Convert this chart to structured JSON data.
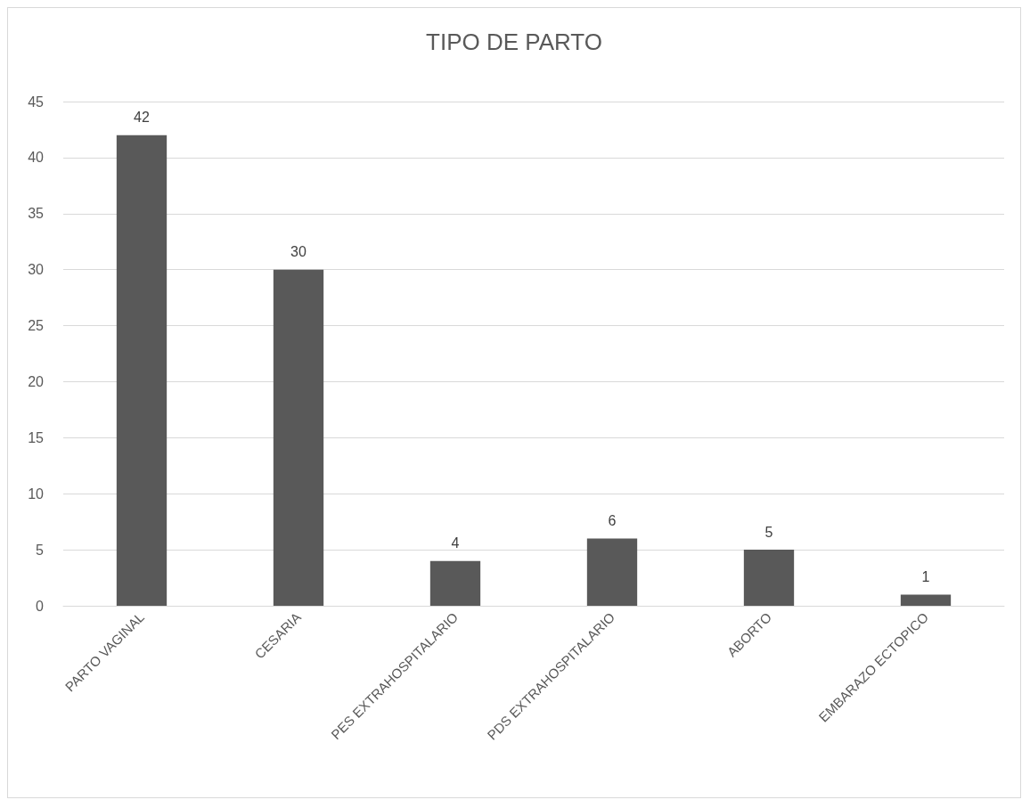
{
  "chart_data": {
    "type": "bar",
    "title": "TIPO DE PARTO",
    "categories": [
      "PARTO VAGINAL",
      "CESARIA",
      "PES EXTRAHOSPITALARIO",
      "PDS EXTRAHOSPITALARIO",
      "ABORTO",
      "EMBARAZO ECTOPICO"
    ],
    "values": [
      42,
      30,
      4,
      6,
      5,
      1
    ],
    "color": "#595959",
    "ylim": [
      0,
      45
    ],
    "yticks": [
      0,
      5,
      10,
      15,
      20,
      25,
      30,
      35,
      40,
      45
    ],
    "grid": "y",
    "data_labels": true
  }
}
